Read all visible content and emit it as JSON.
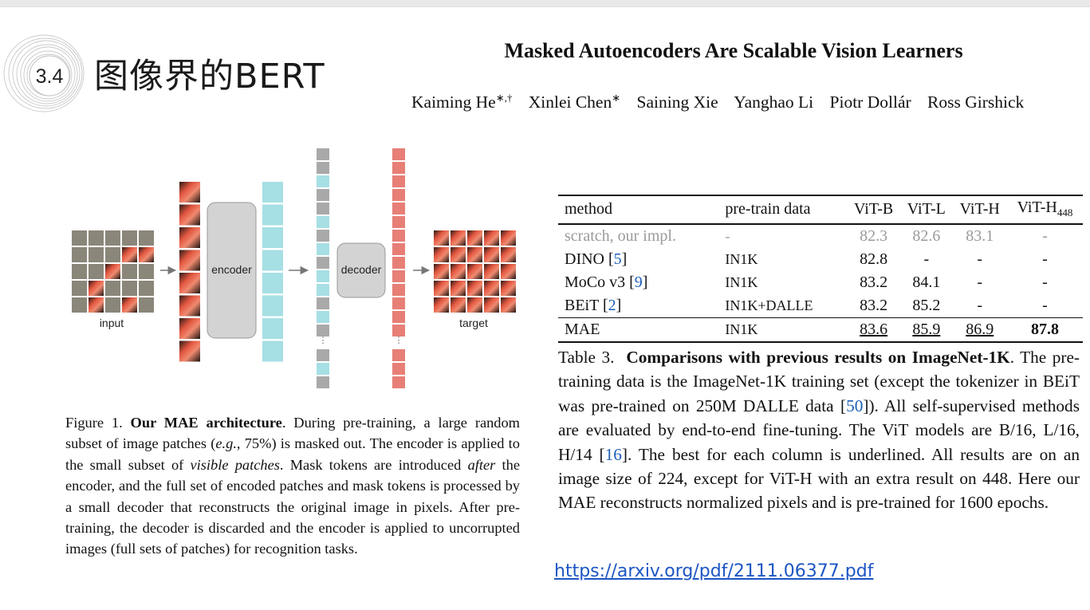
{
  "slide": {
    "section_number": "3.4",
    "section_title": "图像界的BERT"
  },
  "paper": {
    "title": "Masked Autoencoders Are Scalable Vision Learners",
    "authors": [
      {
        "name": "Kaiming He",
        "mark": "∗,†"
      },
      {
        "name": "Xinlei Chen",
        "mark": "∗"
      },
      {
        "name": "Saining Xie",
        "mark": ""
      },
      {
        "name": "Yanghao Li",
        "mark": ""
      },
      {
        "name": "Piotr Dollár",
        "mark": ""
      },
      {
        "name": "Ross Girshick",
        "mark": ""
      }
    ]
  },
  "figure": {
    "input_label": "input",
    "encoder_label": "encoder",
    "decoder_label": "decoder",
    "target_label": "target",
    "colors": {
      "gray_patch": "#8a8679",
      "mask_token": "#a9a9a9",
      "encoded_token": "#a6dfe4",
      "decoded_token": "#e77f77",
      "box": "#d3d3d3"
    },
    "caption": {
      "label": "Figure 1.",
      "bold": "Our MAE architecture",
      "text_html": ". During pre-training, a large random subset of image patches (<i>e.g.</i>, 75%) is masked out. The encoder is applied to the small subset of <i>visible patches</i>. Mask tokens are introduced <i>after</i> the encoder, and the full set of encoded patches and mask tokens is processed by a small decoder that reconstructs the original image in pixels. After pre-training, the decoder is discarded and the encoder is applied to uncorrupted images (full sets of patches) for recognition tasks."
    }
  },
  "table": {
    "headers": [
      "method",
      "pre-train data",
      "ViT-B",
      "ViT-L",
      "ViT-H",
      "ViT-H448"
    ],
    "rows": [
      {
        "method": "scratch, our impl.",
        "ref": "",
        "data": "-",
        "b": "82.3",
        "l": "82.6",
        "h": "83.1",
        "h448": "-",
        "style": "gray"
      },
      {
        "method": "DINO [",
        "ref": "5",
        "data": "IN1K",
        "b": "82.8",
        "l": "-",
        "h": "-",
        "h448": "-",
        "style": ""
      },
      {
        "method": "MoCo v3 [",
        "ref": "9",
        "data": "IN1K",
        "b": "83.2",
        "l": "84.1",
        "h": "-",
        "h448": "-",
        "style": ""
      },
      {
        "method": "BEiT [",
        "ref": "2",
        "data": "IN1K+DALLE",
        "b": "83.2",
        "l": "85.2",
        "h": "-",
        "h448": "-",
        "style": ""
      },
      {
        "method": "MAE",
        "ref": "",
        "data": "IN1K",
        "b": "83.6",
        "l": "85.9",
        "h": "86.9",
        "h448": "87.8",
        "style": "last"
      }
    ],
    "caption": {
      "label": "Table 3.",
      "bold": "Comparisons with previous results on ImageNet-1K",
      "text_html": ". The pre-training data is the ImageNet-1K training set (except the tokenizer in BEiT was pre-trained on 250M DALLE data [<span class=\"ref\">50</span>]). All self-supervised methods are evaluated by end-to-end fine-tuning. The ViT models are B/16, L/16, H/14 [<span class=\"ref\">16</span>]. The best for each column is underlined. All results are on an image size of 224, except for ViT-H with an extra result on 448. Here our MAE reconstructs normalized pixels and is pre-trained for 1600 epochs."
    }
  },
  "link": {
    "url_text": "https://arxiv.org/pdf/2111.06377.pdf"
  }
}
